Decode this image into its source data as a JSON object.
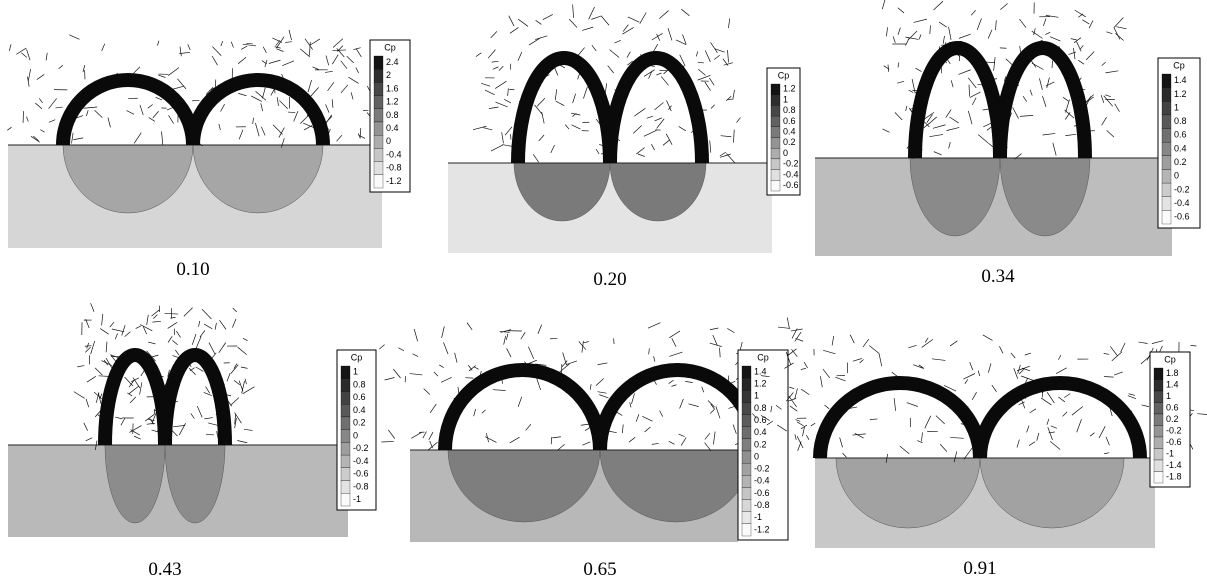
{
  "panels": [
    {
      "caption": "0.10",
      "colorbar": {
        "title": "Cp",
        "ticks": [
          "2.4",
          "2",
          "1.6",
          "1.2",
          "0.8",
          "0.4",
          "0",
          "-0.4",
          "-0.8",
          "-1.2"
        ]
      }
    },
    {
      "caption": "0.20",
      "colorbar": {
        "title": "Cp",
        "ticks": [
          "1.2",
          "1",
          "0.8",
          "0.6",
          "0.4",
          "0.2",
          "0",
          "-0.2",
          "-0.4",
          "-0.6"
        ]
      }
    },
    {
      "caption": "0.34",
      "colorbar": {
        "title": "Cp",
        "ticks": [
          "1.4",
          "1.2",
          "1",
          "0.8",
          "0.6",
          "0.4",
          "0.2",
          "0",
          "-0.2",
          "-0.4",
          "-0.6"
        ]
      }
    },
    {
      "caption": "0.43",
      "colorbar": {
        "title": "Cp",
        "ticks": [
          "1",
          "0.8",
          "0.6",
          "0.4",
          "0.2",
          "0",
          "-0.2",
          "-0.4",
          "-0.6",
          "-0.8",
          "-1"
        ]
      }
    },
    {
      "caption": "0.65",
      "colorbar": {
        "title": "Cp",
        "ticks": [
          "1.4",
          "1.2",
          "1",
          "0.8",
          "0.6",
          "0.4",
          "0.2",
          "0",
          "-0.2",
          "-0.4",
          "-0.6",
          "-0.8",
          "-1",
          "-1.2"
        ]
      }
    },
    {
      "caption": "0.91",
      "colorbar": {
        "title": "Cp",
        "ticks": [
          "1.8",
          "1.4",
          "1",
          "0.6",
          "0.2",
          "-0.2",
          "-0.6",
          "-1",
          "-1.4",
          "-1.8"
        ]
      }
    }
  ]
}
